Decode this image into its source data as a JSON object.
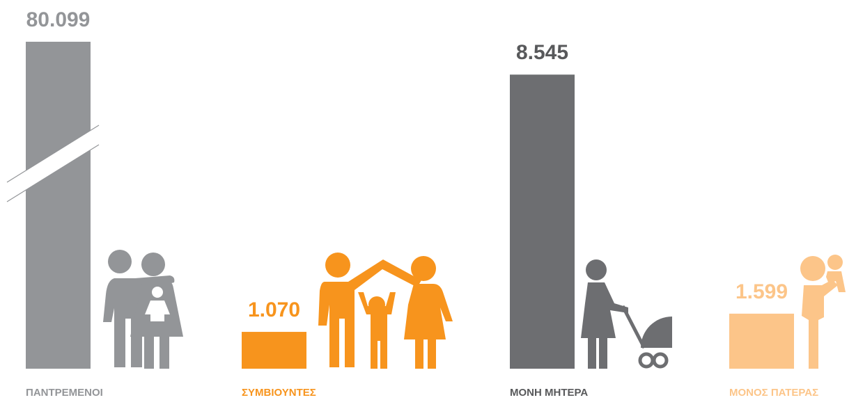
{
  "chart_data": {
    "type": "bar",
    "categories": [
      "ΠΑΝΤΡΕΜΕΝΟΙ",
      "ΣΥΜΒΙΟΥΝΤΕΣ",
      "ΜΟΝΗ ΜΗΤΕΡΑ",
      "ΜΟΝΟΣ ΠΑΤΕΡΑΣ"
    ],
    "values": [
      80099,
      1070,
      8545,
      1599
    ],
    "value_labels": [
      "80.099",
      "1.070",
      "8.545",
      "1.599"
    ],
    "colors": [
      "#939598",
      "#f7941d",
      "#6d6e71",
      "#fcc589"
    ],
    "label_colors": [
      "#939598",
      "#f7941d",
      "#58595b",
      "#fcc589"
    ],
    "ylim": [
      0,
      9500
    ],
    "axis_break": true
  }
}
